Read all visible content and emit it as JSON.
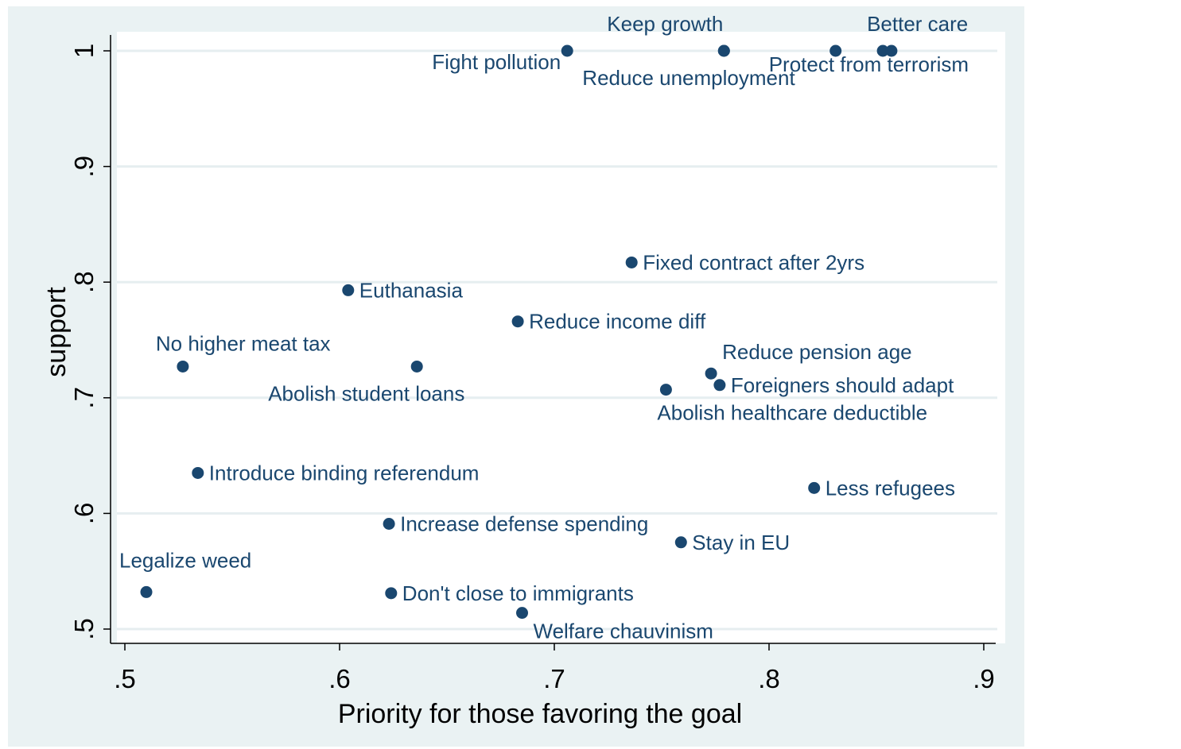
{
  "chart_data": {
    "type": "scatter",
    "xlabel": "Priority for those favoring the goal",
    "ylabel": "support",
    "xlim": [
      0.5,
      0.9
    ],
    "ylim": [
      0.5,
      1.0
    ],
    "x_ticks": [
      ".5",
      ".6",
      ".7",
      ".8",
      ".9"
    ],
    "y_ticks": [
      ".5",
      ".6",
      ".7",
      ".8",
      ".9",
      "1"
    ],
    "grid": true,
    "marker_color": "#1a476f",
    "background_color": "#eaf2f3",
    "points": [
      {
        "x": 0.706,
        "y": 1.0,
        "label": "Fight pollution",
        "pos": "left-up"
      },
      {
        "x": 0.779,
        "y": 1.0,
        "label": "Keep growth",
        "pos": "above-left"
      },
      {
        "x": 0.779,
        "y": 1.0,
        "label": "Reduce unemployment",
        "pos": "below-left"
      },
      {
        "x": 0.831,
        "y": 1.0,
        "label": "Protect from terrorism",
        "pos": "below-right"
      },
      {
        "x": 0.853,
        "y": 1.0,
        "label": "Better care",
        "pos": "above"
      },
      {
        "x": 0.857,
        "y": 1.0,
        "label": "",
        "pos": "none"
      },
      {
        "x": 0.736,
        "y": 0.817,
        "label": "Fixed contract after 2yrs",
        "pos": "right"
      },
      {
        "x": 0.604,
        "y": 0.793,
        "label": "Euthanasia",
        "pos": "right"
      },
      {
        "x": 0.683,
        "y": 0.766,
        "label": "Reduce income diff",
        "pos": "right"
      },
      {
        "x": 0.527,
        "y": 0.727,
        "label": "No higher meat tax",
        "pos": "above-right"
      },
      {
        "x": 0.636,
        "y": 0.727,
        "label": "Abolish student loans",
        "pos": "below-left"
      },
      {
        "x": 0.773,
        "y": 0.721,
        "label": "Reduce pension age",
        "pos": "above-right"
      },
      {
        "x": 0.777,
        "y": 0.711,
        "label": "Foreigners should adapt",
        "pos": "right"
      },
      {
        "x": 0.752,
        "y": 0.707,
        "label": "Abolish healthcare deductible",
        "pos": "below-right"
      },
      {
        "x": 0.534,
        "y": 0.635,
        "label": "Introduce binding referendum",
        "pos": "right"
      },
      {
        "x": 0.821,
        "y": 0.622,
        "label": "Less refugees",
        "pos": "right"
      },
      {
        "x": 0.623,
        "y": 0.591,
        "label": "Increase defense spending",
        "pos": "right"
      },
      {
        "x": 0.759,
        "y": 0.575,
        "label": "Stay in EU",
        "pos": "right"
      },
      {
        "x": 0.51,
        "y": 0.532,
        "label": "Legalize weed",
        "pos": "above-right"
      },
      {
        "x": 0.624,
        "y": 0.531,
        "label": "Don't close to immigrants",
        "pos": "right"
      },
      {
        "x": 0.685,
        "y": 0.514,
        "label": "Welfare chauvinism",
        "pos": "below-right"
      }
    ]
  }
}
